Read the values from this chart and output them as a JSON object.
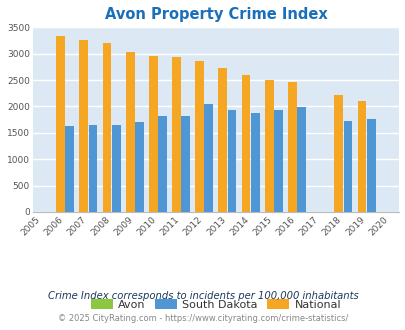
{
  "title": "Avon Property Crime Index",
  "years_all": [
    2005,
    2006,
    2007,
    2008,
    2009,
    2010,
    2011,
    2012,
    2013,
    2014,
    2015,
    2016,
    2017,
    2018,
    2019,
    2020
  ],
  "data_years": [
    2006,
    2007,
    2008,
    2009,
    2010,
    2011,
    2012,
    2013,
    2014,
    2015,
    2016,
    2018,
    2019
  ],
  "south_dakota": [
    1620,
    1640,
    1640,
    1700,
    1820,
    1820,
    2050,
    1930,
    1870,
    1940,
    1990,
    1720,
    1760
  ],
  "national": [
    3340,
    3260,
    3210,
    3040,
    2960,
    2930,
    2870,
    2730,
    2600,
    2500,
    2470,
    2210,
    2110
  ],
  "avon": [
    0,
    0,
    0,
    0,
    0,
    0,
    0,
    0,
    0,
    0,
    0,
    0,
    0
  ],
  "bar_width": 0.38,
  "ylim": [
    0,
    3500
  ],
  "yticks": [
    0,
    500,
    1000,
    1500,
    2000,
    2500,
    3000,
    3500
  ],
  "color_avon": "#8dc63f",
  "color_sd": "#4f96d4",
  "color_national": "#f5a623",
  "bg_color": "#dce9f5",
  "grid_color": "#ffffff",
  "title_color": "#1a6fba",
  "legend_labels": [
    "Avon",
    "South Dakota",
    "National"
  ],
  "footnote1": "Crime Index corresponds to incidents per 100,000 inhabitants",
  "footnote2": "© 2025 CityRating.com - https://www.cityrating.com/crime-statistics/",
  "footnote_color1": "#1a3a5c",
  "footnote_color2": "#888888"
}
